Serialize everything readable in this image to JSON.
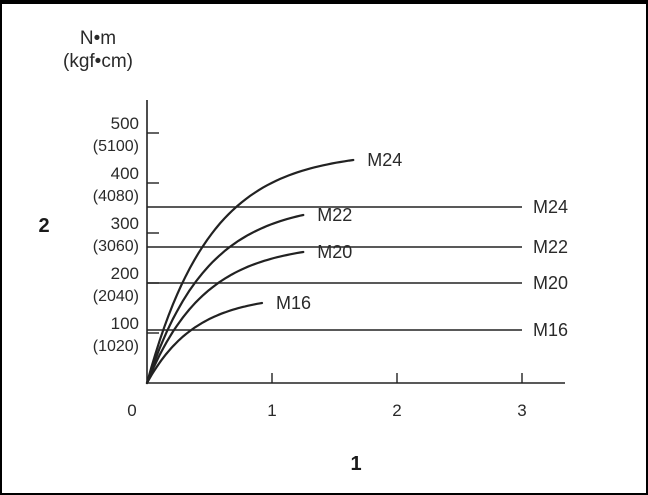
{
  "chart_data": {
    "type": "line",
    "y_unit": "N•m",
    "y_unit_alt": "(kgf•cm)",
    "y_axis_number": "2",
    "x_axis_number": "1",
    "xlim": [
      0,
      3.2
    ],
    "ylim": [
      0,
      520
    ],
    "x_ticks": [
      {
        "value": 0,
        "label": "0"
      },
      {
        "value": 1,
        "label": "1"
      },
      {
        "value": 2,
        "label": "2"
      },
      {
        "value": 3,
        "label": "3"
      }
    ],
    "y_ticks": [
      {
        "value": 100,
        "label": "100",
        "sublabel": "(1020)"
      },
      {
        "value": 200,
        "label": "200",
        "sublabel": "(2040)"
      },
      {
        "value": 300,
        "label": "300",
        "sublabel": "(3060)"
      },
      {
        "value": 400,
        "label": "400",
        "sublabel": "(4080)"
      },
      {
        "value": 500,
        "label": "500",
        "sublabel": "(5100)"
      }
    ],
    "series": [
      {
        "name": "M24",
        "x_end": 1.65,
        "y_end": 446,
        "rate": 2.0
      },
      {
        "name": "M22",
        "x_end": 1.25,
        "y_end": 336,
        "rate": 2.1
      },
      {
        "name": "M20",
        "x_end": 1.25,
        "y_end": 262,
        "rate": 2.2
      },
      {
        "name": "M16",
        "x_end": 0.92,
        "y_end": 160,
        "rate": 2.6
      }
    ],
    "limit_lines": [
      {
        "name": "M24",
        "value": 352
      },
      {
        "name": "M22",
        "value": 272
      },
      {
        "name": "M20",
        "value": 200
      },
      {
        "name": "M16",
        "value": 106
      }
    ]
  }
}
